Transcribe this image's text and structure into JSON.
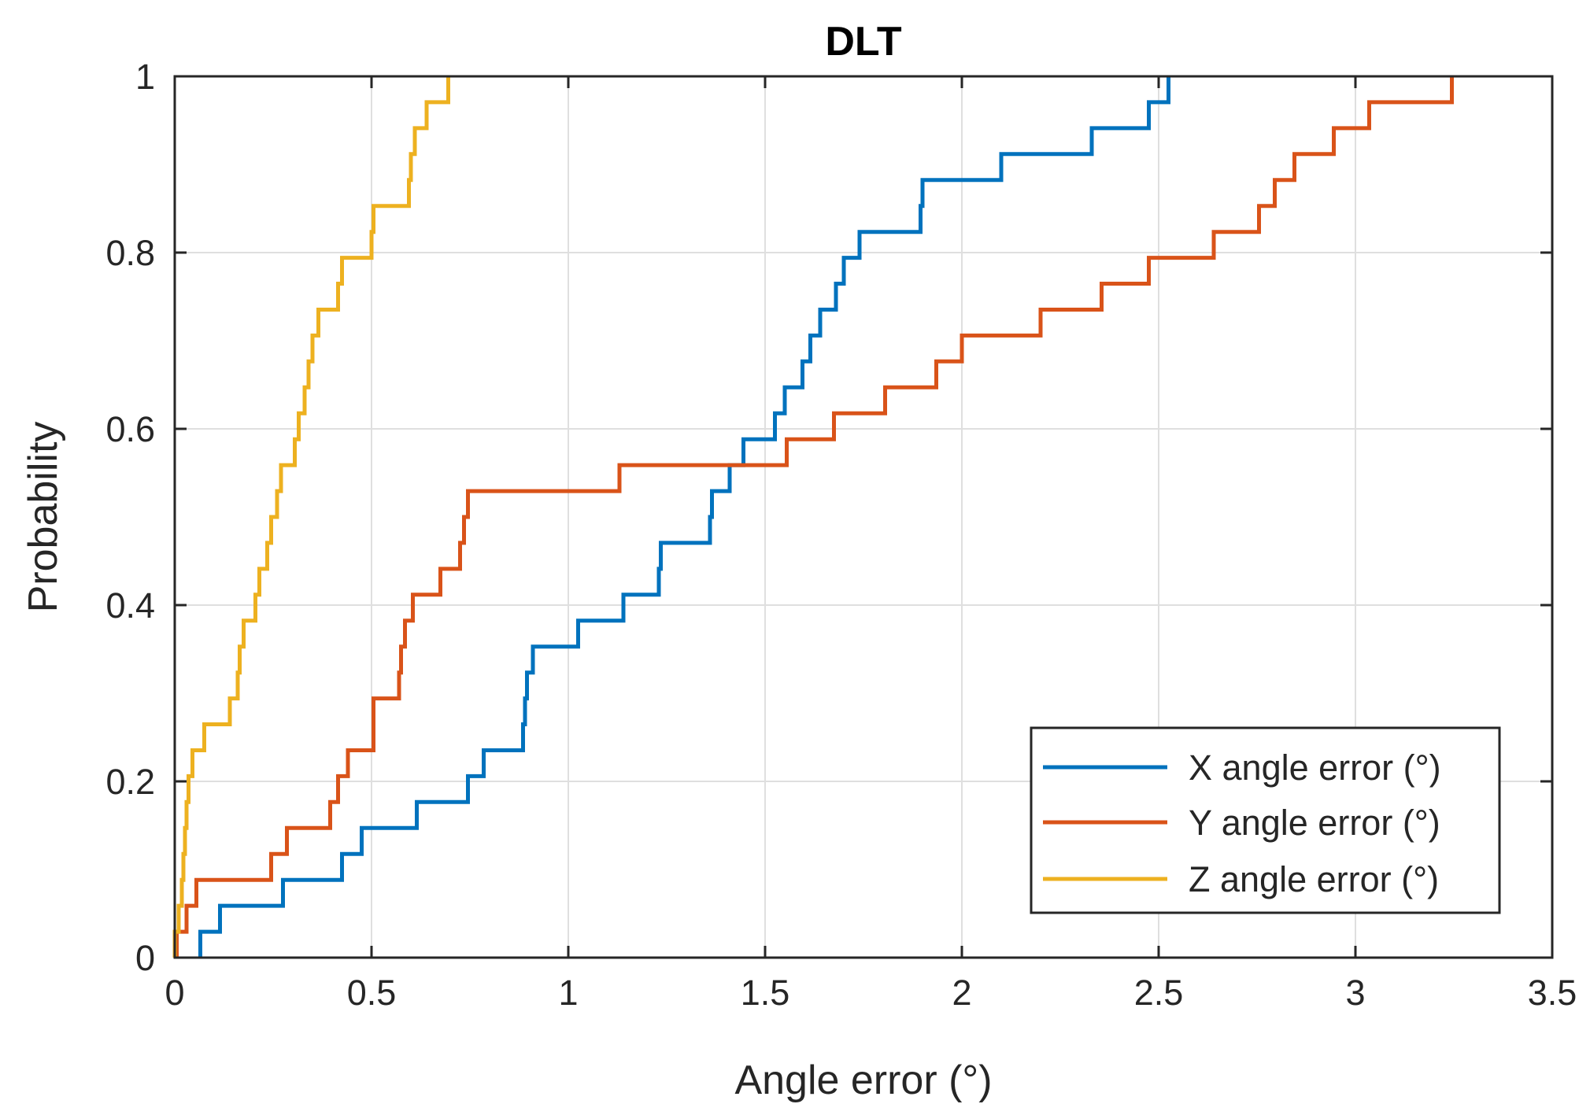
{
  "chart_data": {
    "type": "line",
    "step": true,
    "title": "DLT",
    "xlabel": "Angle error (°)",
    "ylabel": "Probability",
    "xlim": [
      0,
      3.5
    ],
    "ylim": [
      0,
      1
    ],
    "xticks": [
      0,
      0.5,
      1,
      1.5,
      2,
      2.5,
      3,
      3.5
    ],
    "xtick_labels": [
      "0",
      "0.5",
      "1",
      "1.5",
      "2",
      "2.5",
      "3",
      "3.5"
    ],
    "yticks": [
      0,
      0.2,
      0.4,
      0.6,
      0.8,
      1
    ],
    "ytick_labels": [
      "0",
      "0.2",
      "0.4",
      "0.6",
      "0.8",
      "1"
    ],
    "grid": true,
    "legend_position": "bottom-right",
    "series": [
      {
        "name": "X angle error (°)",
        "color": "#0072BD",
        "x": [
          0.065,
          0.115,
          0.275,
          0.425,
          0.475,
          0.615,
          0.745,
          0.785,
          0.885,
          0.89,
          0.895,
          0.91,
          1.025,
          1.14,
          1.23,
          1.235,
          1.36,
          1.365,
          1.41,
          1.445,
          1.525,
          1.55,
          1.595,
          1.615,
          1.64,
          1.68,
          1.7,
          1.74,
          1.895,
          1.9,
          2.1,
          2.33,
          2.475,
          2.525
        ],
        "y": [
          0.0294,
          0.0588,
          0.0882,
          0.1176,
          0.1471,
          0.1765,
          0.2059,
          0.2353,
          0.2647,
          0.2941,
          0.3235,
          0.3529,
          0.3824,
          0.4118,
          0.4412,
          0.4706,
          0.5,
          0.5294,
          0.5588,
          0.5882,
          0.6176,
          0.6471,
          0.6765,
          0.7059,
          0.7353,
          0.7647,
          0.7941,
          0.8235,
          0.8529,
          0.8824,
          0.9118,
          0.9412,
          0.9706,
          1.0
        ]
      },
      {
        "name": "Y angle error (°)",
        "color": "#D95319",
        "x": [
          0.005,
          0.03,
          0.055,
          0.245,
          0.285,
          0.395,
          0.415,
          0.44,
          0.505,
          0.57,
          0.575,
          0.585,
          0.605,
          0.675,
          0.725,
          0.735,
          0.745,
          1.13,
          1.555,
          1.675,
          1.805,
          1.935,
          2.0,
          2.2,
          2.355,
          2.475,
          2.64,
          2.755,
          2.795,
          2.845,
          2.945,
          3.035,
          3.245
        ],
        "y": [
          0.0294,
          0.0588,
          0.0882,
          0.1176,
          0.1471,
          0.1765,
          0.2059,
          0.2353,
          0.2941,
          0.3235,
          0.3529,
          0.3824,
          0.4118,
          0.4412,
          0.4706,
          0.5,
          0.5294,
          0.5588,
          0.5882,
          0.6176,
          0.6471,
          0.6765,
          0.7059,
          0.7353,
          0.7647,
          0.7941,
          0.8235,
          0.8529,
          0.8824,
          0.9118,
          0.9412,
          0.9706,
          1.0
        ]
      },
      {
        "name": "Z angle error (°)",
        "color": "#EDB120",
        "x": [
          0.0,
          0.01,
          0.018,
          0.022,
          0.026,
          0.03,
          0.035,
          0.045,
          0.075,
          0.14,
          0.16,
          0.165,
          0.175,
          0.205,
          0.215,
          0.235,
          0.245,
          0.26,
          0.27,
          0.305,
          0.315,
          0.33,
          0.34,
          0.35,
          0.365,
          0.415,
          0.425,
          0.5,
          0.505,
          0.595,
          0.6,
          0.61,
          0.64,
          0.695
        ],
        "y": [
          0.0294,
          0.0588,
          0.0882,
          0.1176,
          0.1471,
          0.1765,
          0.2059,
          0.2353,
          0.2647,
          0.2941,
          0.3235,
          0.3529,
          0.3824,
          0.4118,
          0.4412,
          0.4706,
          0.5,
          0.5294,
          0.5588,
          0.5882,
          0.6176,
          0.6471,
          0.6765,
          0.7059,
          0.7353,
          0.7647,
          0.7941,
          0.8235,
          0.8529,
          0.8824,
          0.9118,
          0.9412,
          0.9706,
          1.0
        ]
      }
    ]
  }
}
